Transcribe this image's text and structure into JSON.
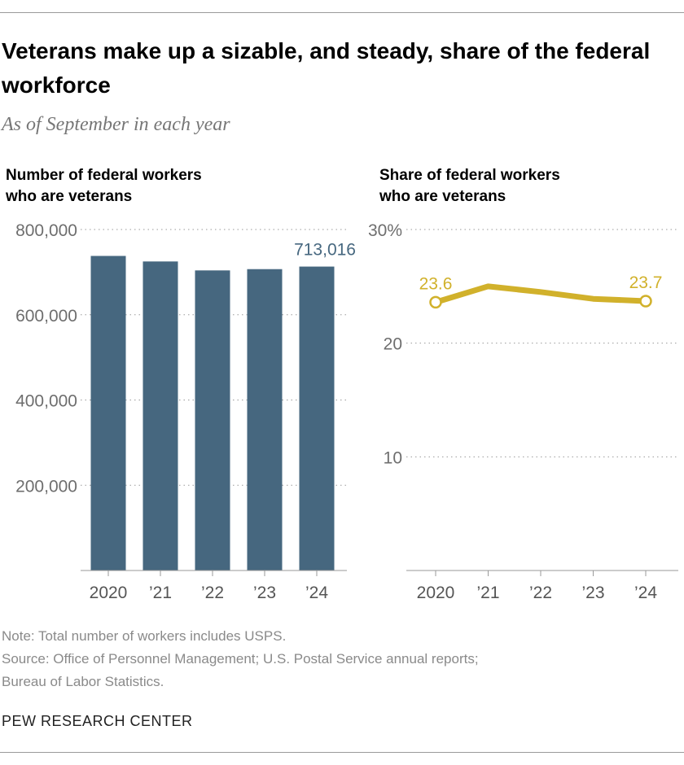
{
  "title": "Veterans make up a sizable, and steady, share of the federal workforce",
  "subtitle": "As of September in each year",
  "chart_data": [
    {
      "type": "bar",
      "title_lines": [
        "Number of federal workers",
        "who are veterans"
      ],
      "categories": [
        "2020",
        "’21",
        "’22",
        "’23",
        "’24"
      ],
      "values": [
        738000,
        725000,
        704000,
        707000,
        713016
      ],
      "ylim": [
        0,
        800000
      ],
      "yticks": [
        200000,
        400000,
        600000,
        800000
      ],
      "ytick_labels": [
        "200,000",
        "400,000",
        "600,000",
        "800,000"
      ],
      "data_labels": [
        {
          "index": 4,
          "text": "713,016"
        }
      ],
      "color": "#46677f",
      "grid": true
    },
    {
      "type": "line",
      "title_lines": [
        "Share of federal workers",
        "who are veterans"
      ],
      "categories": [
        "2020",
        "’21",
        "’22",
        "’23",
        "’24"
      ],
      "values": [
        23.6,
        25.0,
        24.5,
        23.9,
        23.7
      ],
      "ylim": [
        0,
        30
      ],
      "yticks": [
        10,
        20,
        30
      ],
      "ytick_labels": [
        "10",
        "20",
        "30%"
      ],
      "data_labels": [
        {
          "index": 0,
          "text": "23.6"
        },
        {
          "index": 4,
          "text": "23.7"
        }
      ],
      "color": "#d1b12b",
      "grid": true
    }
  ],
  "notes": [
    "Note: Total number of workers includes USPS.",
    "Source: Office of Personnel Management; U.S. Postal Service annual reports;",
    "Bureau of Labor Statistics."
  ],
  "brand": "PEW RESEARCH CENTER"
}
